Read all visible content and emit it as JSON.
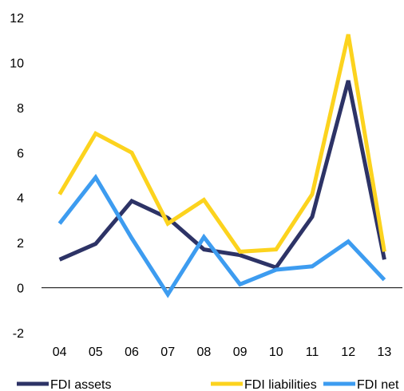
{
  "chart_data": {
    "type": "line",
    "title": "",
    "xlabel": "",
    "ylabel": "",
    "categories": [
      "04",
      "05",
      "06",
      "07",
      "08",
      "09",
      "10",
      "11",
      "12",
      "13"
    ],
    "ylim": [
      -2,
      12
    ],
    "yticks": [
      "-2",
      "0",
      "2",
      "4",
      "6",
      "8",
      "10",
      "12"
    ],
    "grid": false,
    "legend_position": "bottom",
    "series": [
      {
        "name": "FDI assets",
        "color": "#2d3366",
        "values": [
          1.25,
          1.95,
          3.85,
          3.1,
          1.7,
          1.45,
          0.9,
          3.15,
          9.2,
          1.25
        ]
      },
      {
        "name": "FDI liabilities",
        "color": "#fcd31e",
        "values": [
          4.15,
          6.85,
          6.0,
          2.85,
          3.9,
          1.6,
          1.7,
          4.15,
          11.25,
          1.6
        ]
      },
      {
        "name": "FDI net",
        "color": "#3d9cf0",
        "values": [
          2.85,
          4.9,
          2.2,
          -0.3,
          2.25,
          0.15,
          0.8,
          0.95,
          2.05,
          0.35
        ]
      }
    ]
  }
}
